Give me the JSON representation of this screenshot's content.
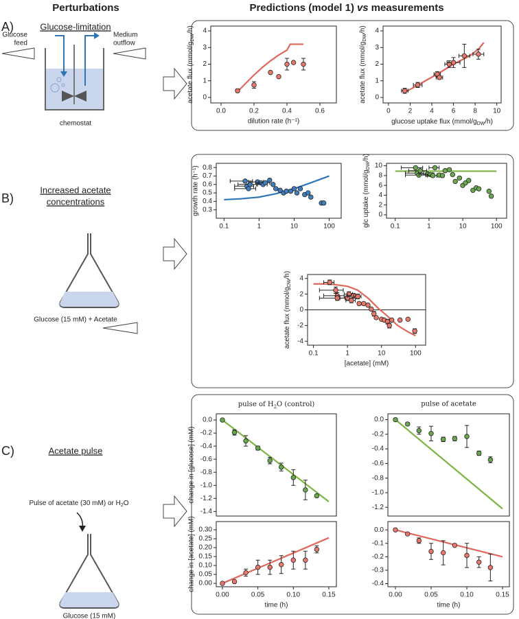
{
  "headers": {
    "left": "Perturbations",
    "right": {
      "text": "Predictions (model 1)",
      "italic": "vs",
      "after": "measurements"
    }
  },
  "panels": [
    {
      "label": "A)",
      "title": [
        "Glucose-limitation"
      ],
      "feed": [
        "Glucose",
        "feed"
      ],
      "outflow": [
        "Medium",
        "outflow"
      ],
      "vessel": "chemostat"
    },
    {
      "label": "B)",
      "title": [
        "Increased acetate",
        "concentrations"
      ],
      "note": "Glucose (15 mM) + Acetate"
    },
    {
      "label": "C)",
      "title": [
        "Acetate pulse"
      ],
      "pulse": {
        "text": "Pulse of acetate (30 mM) or H",
        "sub": "2",
        "after": "O"
      },
      "note": "Glucose (15 mM)"
    }
  ],
  "chart_data": [
    {
      "type": "scatter",
      "xlabel": "dilution rate (h⁻¹)",
      "ylabel": {
        "text": "acetate flux (mmol/g",
        "sub": "DW",
        "after": "/h)"
      },
      "xlim": [
        -0.0625,
        0.7
      ],
      "ylim": [
        -0.33,
        4.29
      ],
      "xticks": [
        {
          "value": 0,
          "label": "0.0"
        },
        0.2,
        0.4,
        0.6
      ],
      "yticks": [
        0,
        1,
        2,
        3,
        4
      ],
      "series": [
        {
          "type": "line",
          "color": "#e0675a",
          "x": [
            0.1,
            0.15,
            0.2,
            0.25,
            0.3,
            0.35,
            0.4,
            0.42,
            0.5
          ],
          "values": [
            0.35,
            0.85,
            1.35,
            1.8,
            2.2,
            2.55,
            2.85,
            3.2,
            3.2
          ]
        },
        {
          "type": "scatter",
          "color": "#e8786b",
          "x": [
            0.1,
            0.2,
            0.3,
            0.35,
            0.4,
            0.44,
            0.5
          ],
          "values": [
            0.4,
            0.75,
            1.5,
            1.25,
            2.0,
            2.1,
            2.0
          ],
          "errors": [
            0.1,
            0.2,
            0,
            0,
            0.35,
            0,
            0.35
          ]
        }
      ]
    },
    {
      "type": "scatter",
      "xlabel": {
        "text": "glucose uptake flux (mmol/g",
        "sub": "DW",
        "after": "/h)"
      },
      "ylabel": {
        "text": "acetate flux (mmol/g",
        "sub": "DW",
        "after": "/h)"
      },
      "xlim": [
        -0.5,
        10.4
      ],
      "ylim": [
        -0.33,
        4.29
      ],
      "xticks": [
        0,
        2,
        4,
        6,
        8,
        10
      ],
      "yticks": [
        0,
        1,
        2,
        3,
        4
      ],
      "series": [
        {
          "type": "line",
          "color": "#e0675a",
          "x": [
            1.5,
            3,
            4.5,
            6,
            7.5,
            8.3,
            8.8
          ],
          "values": [
            0.3,
            0.85,
            1.4,
            2.0,
            2.5,
            2.9,
            3.3
          ]
        },
        {
          "type": "scatter",
          "color": "#e8786b",
          "x": [
            1.5,
            2.7,
            4.5,
            4.7,
            5.6,
            6.0,
            7.0,
            8.3
          ],
          "values": [
            0.4,
            0.75,
            1.4,
            1.2,
            2.0,
            2.1,
            2.5,
            2.6
          ],
          "errors": [
            0.15,
            0.15,
            0.15,
            0.1,
            0.2,
            0.3,
            0.7,
            0.3
          ],
          "xerr": [
            0.3,
            0.4,
            0.3,
            0.3,
            0.4,
            0.6,
            0.5,
            0.5
          ]
        }
      ]
    },
    {
      "type": "scatter",
      "ylabel": "growth rate (h⁻¹)",
      "xscale": "log",
      "xlim": [
        0.06,
        220
      ],
      "ylim": [
        0.2,
        0.85
      ],
      "xticks": [
        0.1,
        1,
        10,
        100
      ],
      "yticks": [
        0.3,
        0.4,
        0.5,
        0.6,
        0.7,
        0.8
      ],
      "series": [
        {
          "type": "line",
          "color": "#2e75b6",
          "x": [
            0.1,
            0.3,
            1,
            3,
            10,
            30,
            100
          ],
          "values": [
            0.42,
            0.43,
            0.45,
            0.49,
            0.55,
            0.62,
            0.7
          ]
        },
        {
          "type": "scatter",
          "color": "#3f7fc0",
          "x": [
            0.4,
            0.45,
            0.5,
            0.55,
            0.9,
            1.1,
            1.3,
            1.5,
            2,
            2.5,
            3,
            4,
            5,
            6,
            8,
            10,
            12,
            15,
            20,
            25,
            30,
            60,
            70
          ],
          "values": [
            0.64,
            0.58,
            0.55,
            0.6,
            0.63,
            0.62,
            0.6,
            0.62,
            0.65,
            0.6,
            0.55,
            0.53,
            0.5,
            0.52,
            0.52,
            0.55,
            0.5,
            0.55,
            0.48,
            0.5,
            0.45,
            0.38,
            0.38
          ],
          "xerr": [
            0.25,
            0.25,
            0.3,
            0.3,
            0.4,
            0.3,
            0.4,
            0.5,
            0,
            0,
            0,
            0,
            0,
            0,
            0,
            0,
            0,
            0,
            0,
            0,
            0,
            0,
            0
          ]
        }
      ]
    },
    {
      "type": "scatter",
      "ylabel": {
        "text": "glc uptake (mmol/g",
        "sub": "DW",
        "after": "/h)"
      },
      "xscale": "log",
      "xlim": [
        0.055,
        200
      ],
      "ylim": [
        -0.7,
        10.5
      ],
      "xticks": [
        0.1,
        1,
        10,
        100
      ],
      "yticks": [
        0,
        2,
        4,
        6,
        8,
        10
      ],
      "series": [
        {
          "type": "line",
          "color": "#7cb342",
          "x": [
            0.1,
            100
          ],
          "values": [
            8.9,
            8.9
          ]
        },
        {
          "type": "scatter",
          "color": "#6aa84f",
          "x": [
            0.4,
            0.45,
            0.5,
            0.55,
            0.9,
            1.1,
            1.3,
            1.5,
            2,
            2.5,
            3,
            4,
            5,
            6,
            8,
            10,
            12,
            15,
            20,
            25,
            30,
            60,
            70
          ],
          "values": [
            9.6,
            8.5,
            8.1,
            9.0,
            8.3,
            8.2,
            8.0,
            9.6,
            8.1,
            8.0,
            9.0,
            9.2,
            8.2,
            6.8,
            7.5,
            6.0,
            6.5,
            7.0,
            5.0,
            5.5,
            5.3,
            4.8,
            3.8
          ],
          "xerr": [
            0.25,
            0.25,
            0.3,
            0.3,
            0.4,
            0.3,
            0.4,
            0.5,
            0,
            0,
            0,
            0,
            0,
            0,
            0,
            0,
            0,
            0,
            0,
            0,
            0,
            0,
            0
          ]
        }
      ]
    },
    {
      "type": "scatter",
      "xlabel": "[acetate] (mM)",
      "ylabel": {
        "text": "acetate flux (mmol/g",
        "sub": "DW",
        "after": "/h)"
      },
      "xscale": "log",
      "hlines": [
        0
      ],
      "xlim": [
        0.067,
        198
      ],
      "ylim": [
        -4.5,
        4.5
      ],
      "xticks": [
        0.1,
        1,
        10,
        100
      ],
      "yticks": [
        -4,
        -2,
        0,
        2,
        4
      ],
      "series": [
        {
          "type": "line",
          "color": "#e0675a",
          "x": [
            0.1,
            0.3,
            1,
            2,
            4,
            8,
            15,
            30,
            60,
            100
          ],
          "values": [
            3.3,
            3.3,
            3.0,
            2.5,
            1.5,
            0.2,
            -0.8,
            -2.0,
            -2.8,
            -3.3
          ]
        },
        {
          "type": "scatter",
          "color": "#e8786b",
          "x": [
            0.3,
            0.45,
            0.5,
            0.5,
            1.0,
            1.1,
            1.3,
            1.5,
            2,
            2.2,
            3,
            4,
            5,
            6,
            7,
            10,
            12,
            15,
            17,
            20,
            35,
            60,
            95
          ],
          "values": [
            3.5,
            2.5,
            1.8,
            1.5,
            1.5,
            2.0,
            1.2,
            1.8,
            1.7,
            0.8,
            0.8,
            0.6,
            0.1,
            -0.5,
            -1.0,
            -1.2,
            -1.3,
            -1.5,
            -2.0,
            -1.3,
            -1.3,
            -1.2,
            -2.7
          ],
          "errors": [
            0.3,
            0.4,
            0.4,
            0.3,
            0.3,
            0.3,
            0.3,
            0.3,
            0.3,
            0.2,
            0,
            0,
            0,
            0.3,
            0,
            0,
            0,
            0.3,
            0.3,
            0,
            0,
            0,
            0.3
          ],
          "xerr": [
            0.1,
            0.3,
            0.3,
            0.35,
            0.4,
            0.3,
            0.4,
            0.5,
            0.5,
            0,
            0,
            0,
            0,
            0,
            0,
            0,
            0,
            0,
            0,
            0,
            0,
            0,
            0
          ]
        }
      ]
    },
    {
      "type": "scatter",
      "title": {
        "text": "pulse of H",
        "sub": "2",
        "after": "O (control)"
      },
      "ylabel": "change in [glucose] (mM)",
      "xlim": [
        -0.0087,
        0.1607
      ],
      "ylim": [
        -1.47,
        0.095
      ],
      "yticks": [
        {
          "value": 0,
          "label": "0.0"
        },
        -0.2,
        -0.4,
        -0.6,
        -0.8,
        {
          "value": -1,
          "label": "-1.0"
        },
        -1.2,
        -1.4
      ],
      "series": [
        {
          "type": "line",
          "color": "#7cb342",
          "x": [
            0,
            0.15
          ],
          "values": [
            0,
            -1.25
          ]
        },
        {
          "type": "scatter",
          "color": "#6aa84f",
          "x": [
            0,
            0.017,
            0.033,
            0.05,
            0.067,
            0.083,
            0.1,
            0.117,
            0.133
          ],
          "values": [
            0,
            -0.19,
            -0.32,
            -0.43,
            -0.62,
            -0.72,
            -0.88,
            -1.07,
            -1.16
          ],
          "errors": [
            0,
            0.04,
            0.08,
            0.03,
            0.05,
            0.06,
            0.12,
            0.15,
            0.02
          ]
        }
      ]
    },
    {
      "type": "scatter",
      "title": "pulse of acetate",
      "xlim": [
        -0.0106,
        0.1596
      ],
      "ylim": [
        -1.32,
        0.08
      ],
      "yticks": [
        {
          "value": 0,
          "label": "0.0"
        },
        -0.2,
        -0.4,
        -0.6,
        -0.8,
        {
          "value": -1,
          "label": "-1.0"
        },
        -1.2
      ],
      "series": [
        {
          "type": "line",
          "color": "#7cb342",
          "x": [
            0,
            0.15
          ],
          "values": [
            0,
            -1.22
          ]
        },
        {
          "type": "scatter",
          "color": "#6aa84f",
          "x": [
            0,
            0.017,
            0.033,
            0.05,
            0.067,
            0.083,
            0.1,
            0.117,
            0.133
          ],
          "values": [
            0,
            -0.06,
            -0.15,
            -0.19,
            -0.27,
            -0.26,
            -0.23,
            -0.46,
            -0.55
          ],
          "errors": [
            0,
            0.02,
            0.05,
            0.1,
            0.03,
            0.03,
            0.15,
            0.03,
            0.04
          ]
        }
      ]
    },
    {
      "type": "scatter",
      "xlabel": "time (h)",
      "ylabel": "change in [acetate] (mM)",
      "xlim": [
        -0.0087,
        0.1607
      ],
      "ylim": [
        -0.019,
        0.346
      ],
      "xticks": [
        {
          "value": 0,
          "label": "0.00"
        },
        0.05,
        {
          "value": 0.1,
          "label": "0.10"
        },
        0.15
      ],
      "yticks": [
        {
          "value": 0,
          "label": "0.00"
        },
        0.05,
        {
          "value": 0.1,
          "label": "0.10"
        },
        0.15,
        {
          "value": 0.2,
          "label": "0.20"
        },
        0.25,
        {
          "value": 0.3,
          "label": "0.30"
        }
      ],
      "series": [
        {
          "type": "line",
          "color": "#e0675a",
          "x": [
            0,
            0.15
          ],
          "values": [
            0,
            0.255
          ]
        },
        {
          "type": "scatter",
          "color": "#e8786b",
          "x": [
            0,
            0.017,
            0.033,
            0.05,
            0.067,
            0.083,
            0.1,
            0.117,
            0.133
          ],
          "values": [
            0,
            0.01,
            0.06,
            0.09,
            0.09,
            0.105,
            0.13,
            0.13,
            0.19
          ],
          "errors": [
            0,
            0,
            0.02,
            0.04,
            0.04,
            0.05,
            0.05,
            0.05,
            0.02
          ]
        }
      ]
    },
    {
      "type": "scatter",
      "xlabel": "time (h)",
      "xlim": [
        -0.0106,
        0.1596
      ],
      "ylim": [
        -0.423,
        0.062
      ],
      "xticks": [
        {
          "value": 0,
          "label": "0.00"
        },
        0.05,
        {
          "value": 0.1,
          "label": "0.10"
        },
        0.15
      ],
      "yticks": [
        {
          "value": 0,
          "label": "0.0"
        },
        -0.1,
        -0.2,
        -0.3,
        -0.4
      ],
      "series": [
        {
          "type": "line",
          "color": "#e0675a",
          "x": [
            0,
            0.15
          ],
          "values": [
            0,
            -0.2
          ]
        },
        {
          "type": "scatter",
          "color": "#e8786b",
          "x": [
            0,
            0.017,
            0.033,
            0.05,
            0.067,
            0.083,
            0.1,
            0.117,
            0.133
          ],
          "values": [
            0,
            -0.03,
            -0.08,
            -0.16,
            -0.17,
            -0.115,
            -0.19,
            -0.24,
            -0.28
          ],
          "errors": [
            0,
            0.005,
            0.02,
            0.06,
            0.09,
            0.005,
            0.09,
            0.04,
            0.1
          ]
        }
      ]
    }
  ]
}
